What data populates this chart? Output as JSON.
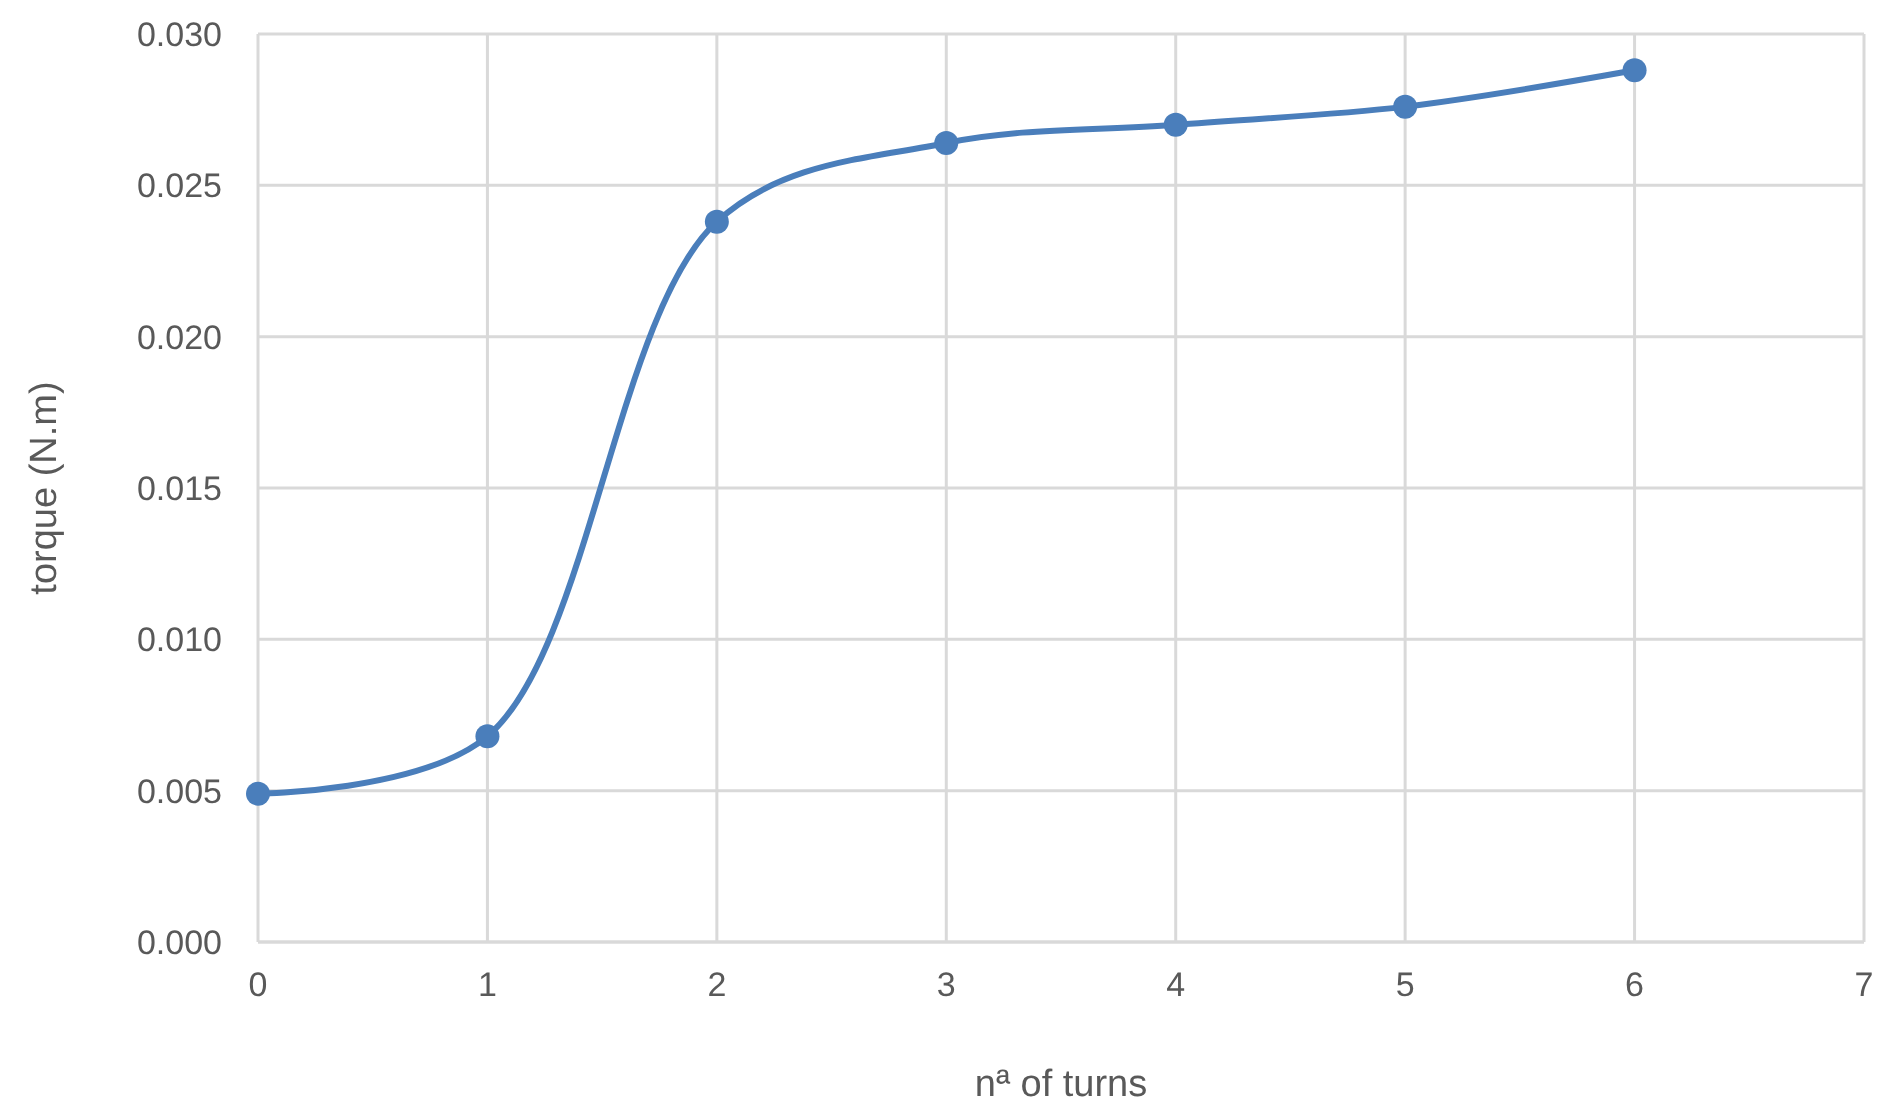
{
  "chart_data": {
    "type": "line",
    "xlabel": "nª of turns",
    "ylabel": "torque (N.m)",
    "x": [
      0,
      1,
      2,
      3,
      4,
      5,
      6
    ],
    "series": [
      {
        "color": "#4a7ebb",
        "values": [
          0.0049,
          0.0068,
          0.0238,
          0.0264,
          0.027,
          0.0276,
          0.0288
        ]
      }
    ],
    "xlim": [
      0,
      7
    ],
    "xticks": [
      0,
      1,
      2,
      3,
      4,
      5,
      6,
      7
    ],
    "ylim": [
      0,
      0.03
    ],
    "yticks": [
      {
        "value": 0,
        "label": "0.000"
      },
      {
        "value": 0.005,
        "label": "0.005"
      },
      {
        "value": 0.01,
        "label": "0.010"
      },
      {
        "value": 0.015,
        "label": "0.015"
      },
      {
        "value": 0.02,
        "label": "0.020"
      },
      {
        "value": 0.025,
        "label": "0.025"
      },
      {
        "value": 0.03,
        "label": "0.030"
      }
    ],
    "grid": true,
    "marker": "circle",
    "line_style": "solid"
  }
}
